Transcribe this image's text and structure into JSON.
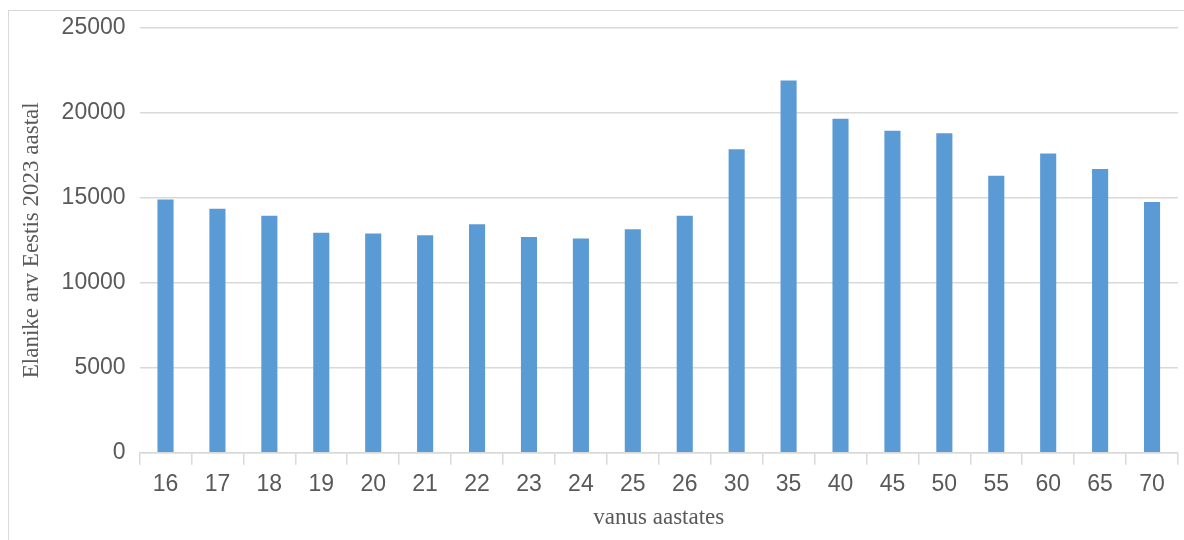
{
  "chart_data": {
    "type": "bar",
    "xlabel": "vanus aastates",
    "ylabel": "Elanike arv Eestis 2023 aastal",
    "categories": [
      "16",
      "17",
      "18",
      "19",
      "20",
      "21",
      "22",
      "23",
      "24",
      "25",
      "26",
      "30",
      "35",
      "40",
      "45",
      "50",
      "55",
      "60",
      "65",
      "70"
    ],
    "values": [
      14900,
      14350,
      13950,
      12950,
      12900,
      12800,
      13450,
      12700,
      12600,
      13150,
      13950,
      17850,
      21900,
      19650,
      18950,
      18800,
      16300,
      17600,
      16700,
      14750
    ],
    "color": "#5b9bd5",
    "ylim": [
      0,
      25000
    ],
    "yticks": [
      0,
      5000,
      10000,
      15000,
      20000,
      25000
    ],
    "grid": "y"
  }
}
